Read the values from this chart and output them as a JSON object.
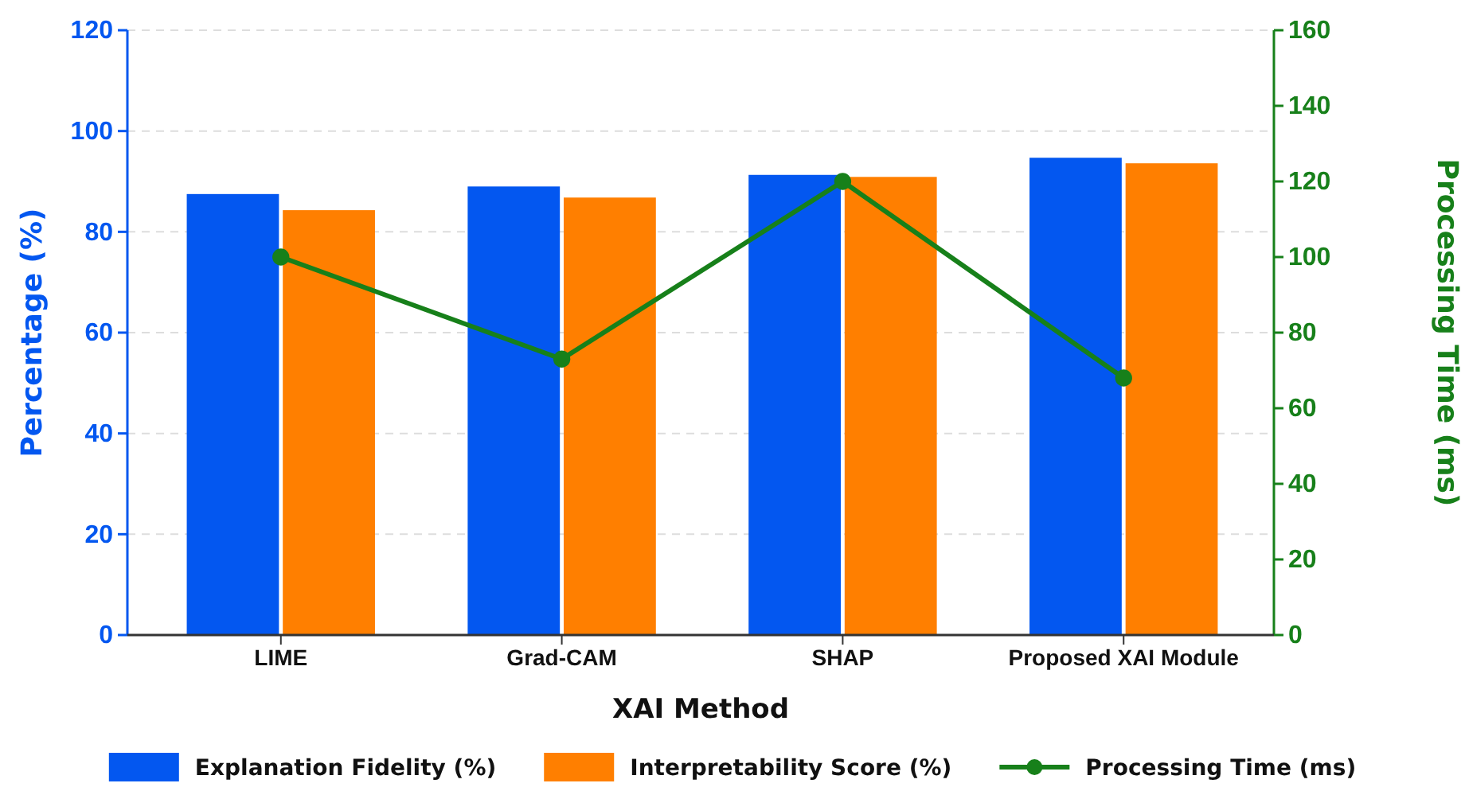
{
  "chart_data": {
    "type": "bar",
    "xlabel": "XAI Method",
    "ylabel": "Percentage (%)",
    "y2label": "Processing Time (ms)",
    "categories": [
      "LIME",
      "Grad-CAM",
      "SHAP",
      "Proposed XAI Module"
    ],
    "series": [
      {
        "name": "Explanation Fidelity (%)",
        "color": "#0357f0",
        "values": [
          87.5,
          89,
          91.3,
          94.7
        ]
      },
      {
        "name": "Interpretability Score (%)",
        "color": "#ff7f00",
        "values": [
          84.3,
          86.8,
          90.9,
          93.6
        ]
      },
      {
        "name": "Processing Time (ms)",
        "type": "line",
        "axis": "y2",
        "color": "#17801a",
        "values": [
          100,
          73,
          120,
          68
        ]
      }
    ],
    "ylim": [
      0,
      120
    ],
    "yticks": [
      0,
      20,
      40,
      60,
      80,
      100,
      120
    ],
    "y2lim": [
      0,
      160
    ],
    "y2ticks": [
      0,
      20,
      40,
      60,
      80,
      100,
      120,
      140,
      160
    ],
    "grid": "y",
    "legend": "bottom",
    "marker": "circle",
    "line_style": "solid"
  }
}
